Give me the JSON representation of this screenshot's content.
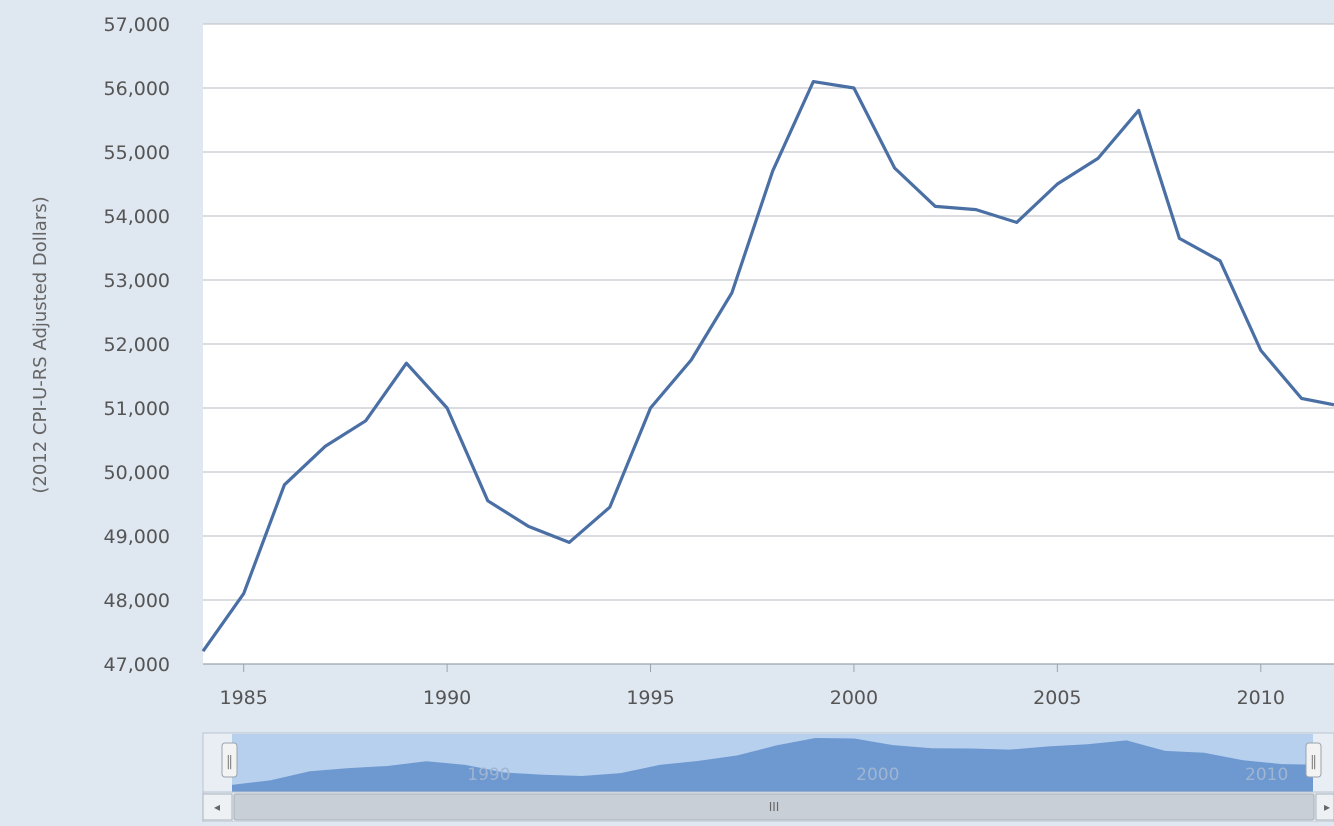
{
  "chart_data": {
    "type": "line",
    "ylabel": "(2012 CPI-U-RS Adjusted Dollars)",
    "xlabel": "",
    "xlim": [
      1984,
      2011.8
    ],
    "ylim": [
      47000,
      57000
    ],
    "x_ticks": [
      1985,
      1990,
      1995,
      2000,
      2005,
      2010
    ],
    "y_ticks": [
      47000,
      48000,
      49000,
      50000,
      51000,
      52000,
      53000,
      54000,
      55000,
      56000,
      57000
    ],
    "y_tick_labels": [
      "47,000",
      "48,000",
      "49,000",
      "50,000",
      "51,000",
      "52,000",
      "53,000",
      "54,000",
      "55,000",
      "56,000",
      "57,000"
    ],
    "x_tick_labels": [
      "1985",
      "1990",
      "1995",
      "2000",
      "2005",
      "2010"
    ],
    "grid": true,
    "line_color": "#4a6fa5",
    "series": [
      {
        "x": [
          1984,
          1985,
          1986,
          1987,
          1988,
          1989,
          1990,
          1991,
          1992,
          1993,
          1994,
          1995,
          1996,
          1997,
          1998,
          1999,
          2000,
          2001,
          2002,
          2003,
          2004,
          2005,
          2006,
          2007,
          2008,
          2009,
          2010,
          2011,
          2011.8
        ],
        "values": [
          47200,
          48100,
          49800,
          50400,
          50800,
          51700,
          51000,
          49550,
          49150,
          48900,
          49450,
          51000,
          51750,
          52800,
          54700,
          56100,
          56000,
          54750,
          54150,
          54100,
          53900,
          54500,
          54900,
          55650,
          53650,
          53300,
          51900,
          51150,
          51050
        ]
      }
    ]
  },
  "navigator": {
    "labels": [
      "1990",
      "2000",
      "2010"
    ],
    "fill_color": "#6e98d0",
    "window_color": "#b7d0ee",
    "scroll_grip": "III",
    "left_arrow": "◂",
    "right_arrow": "▸",
    "handle_grip": "‖"
  }
}
